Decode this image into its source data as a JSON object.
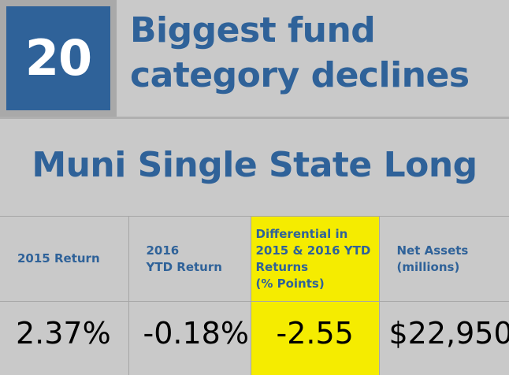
{
  "rank": "20",
  "headline": "Biggest fund category declines",
  "category": "Muni Single State Long",
  "columns": [
    {
      "label": "2015 Return",
      "value": "2.37%",
      "highlight": false
    },
    {
      "label": "2016\nYTD Return",
      "value": "-0.18%",
      "highlight": false
    },
    {
      "label": "Differential in\n2015 & 2016 YTD\nReturns\n(% Points)",
      "value": "-2.55",
      "highlight": true
    },
    {
      "label": "Net Assets\n(millions)",
      "value": "$22,950",
      "highlight": false
    }
  ],
  "colors": {
    "brand_blue": "#2f6299",
    "highlight_yellow": "#f5ec00",
    "background_gray": "#c9c9c9"
  }
}
